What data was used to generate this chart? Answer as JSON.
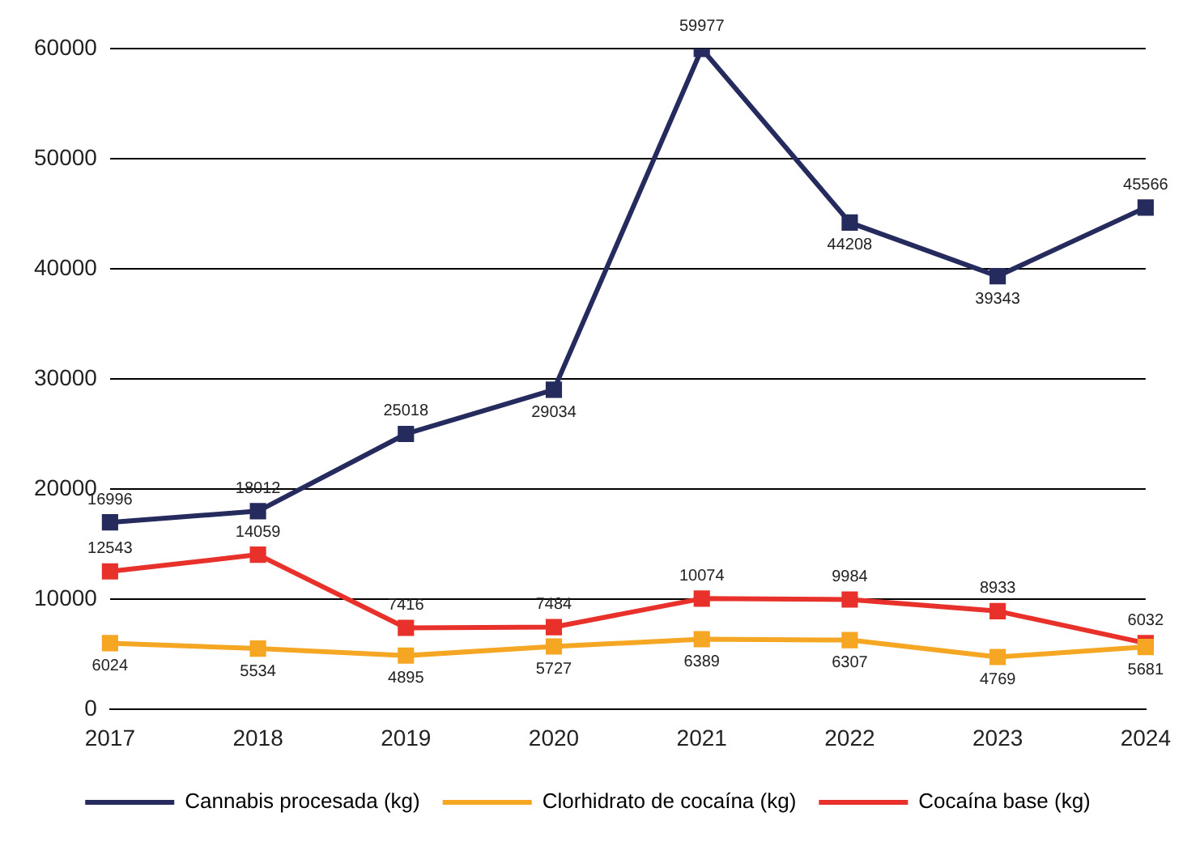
{
  "chart_data": {
    "type": "line",
    "categories": [
      "2017",
      "2018",
      "2019",
      "2020",
      "2021",
      "2022",
      "2023",
      "2024"
    ],
    "series": [
      {
        "name": "Cannabis procesada (kg)",
        "color": "#262b5e",
        "values": [
          16996,
          18012,
          25018,
          29034,
          59977,
          44208,
          39343,
          45566
        ]
      },
      {
        "name": "Clorhidrato de cocaína (kg)",
        "color": "#f5a623",
        "values": [
          6024,
          5534,
          4895,
          5727,
          6389,
          6307,
          4769,
          5681
        ]
      },
      {
        "name": "Cocaína base (kg)",
        "color": "#e8312a",
        "values": [
          12543,
          14059,
          7416,
          7484,
          10074,
          9984,
          8933,
          6032
        ]
      }
    ],
    "ylim": [
      0,
      60000
    ],
    "yticks": [
      0,
      10000,
      20000,
      30000,
      40000,
      50000,
      60000
    ],
    "grid": "y",
    "legend": "bottom",
    "marker": "square",
    "line_style": "solid",
    "data_labels": true
  }
}
